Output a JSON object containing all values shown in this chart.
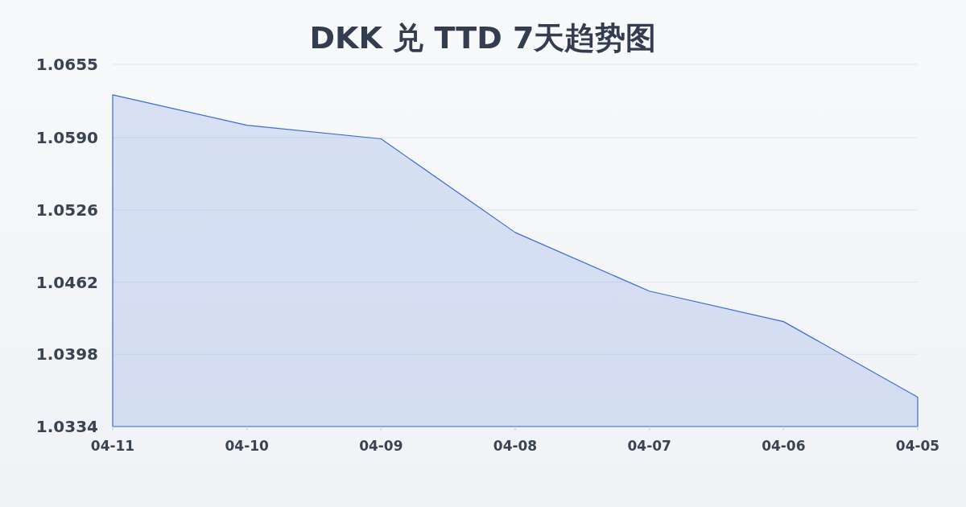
{
  "chart_data": {
    "type": "area",
    "title": "DKK 兑 TTD 7天趋势图",
    "categories": [
      "04-11",
      "04-10",
      "04-09",
      "04-08",
      "04-07",
      "04-06",
      "04-05"
    ],
    "series": [
      {
        "color": "#3a6bd2",
        "values": [
          1.0628,
          1.0601,
          1.0589,
          1.0506,
          1.0454,
          1.0427,
          1.036
        ]
      }
    ],
    "ylim": [
      1.0334,
      1.0655
    ],
    "yticks": [
      1.0334,
      1.0398,
      1.0462,
      1.0526,
      {
        "value": 1.059,
        "label": "1.0590"
      },
      1.0655
    ],
    "grid": "y"
  }
}
